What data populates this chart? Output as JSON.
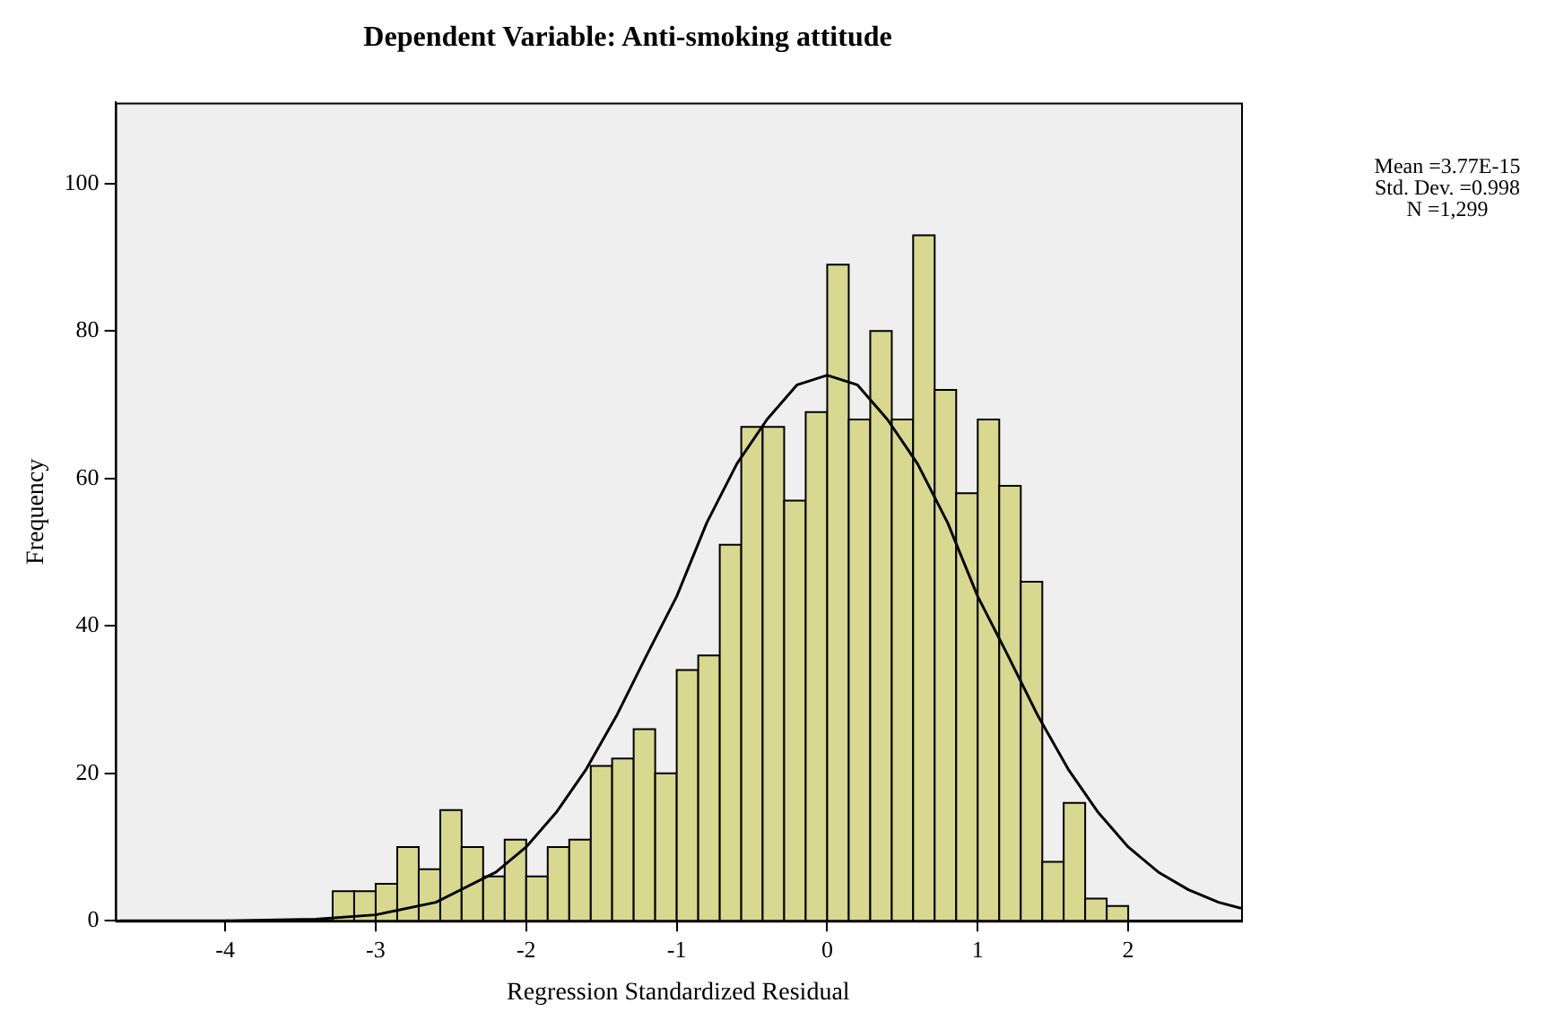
{
  "chart_data": {
    "type": "histogram",
    "title": "Dependent Variable: Anti-smoking attitude",
    "xlabel": "Regression Standardized Residual",
    "ylabel": "Frequency",
    "bins": [
      -3.286,
      -3.143,
      -3,
      -2.857,
      -2.714,
      -2.571,
      -2.429,
      -2.286,
      -2.143,
      -2,
      -1.857,
      -1.714,
      -1.571,
      -1.429,
      -1.286,
      -1.143,
      -1,
      -0.857,
      -0.714,
      -0.571,
      -0.429,
      -0.286,
      -0.143,
      0,
      0.143,
      0.286,
      0.429,
      0.571,
      0.714,
      0.857,
      1,
      1.143,
      1.286,
      1.429,
      1.571,
      1.714,
      1.857,
      2
    ],
    "values": [
      4,
      4,
      5,
      10,
      7,
      15,
      10,
      6,
      11,
      6,
      10,
      11,
      21,
      22,
      26,
      20,
      34,
      36,
      51,
      67,
      67,
      57,
      69,
      89,
      68,
      80,
      68,
      93,
      72,
      58,
      68,
      59,
      46,
      8,
      16,
      3,
      2
    ],
    "color": "#d8d890",
    "series": [
      {
        "type": "line",
        "color": "#000000",
        "x": [
          -4.7,
          -4,
          -3.4,
          -3,
          -2.6,
          -2.2,
          -2,
          -1.8,
          -1.6,
          -1.4,
          -1.2,
          -1,
          -0.8,
          -0.6,
          -0.4,
          -0.2,
          0,
          0.2,
          0.4,
          0.6,
          0.8,
          1,
          1.2,
          1.4,
          1.6,
          1.8,
          2,
          2.2,
          2.4,
          2.6,
          2.75
        ],
        "values": [
          0,
          0,
          0.2,
          0.8,
          2.5,
          6.6,
          10,
          14.7,
          20.6,
          27.8,
          36,
          44,
          54,
          62,
          68,
          72.7,
          74,
          72.7,
          68,
          62,
          54,
          44,
          36,
          27.8,
          20.6,
          14.7,
          10,
          6.6,
          4.2,
          2.5,
          1.7
        ]
      }
    ],
    "xlim": [
      -4.73,
      2.75
    ],
    "xticks": [
      -4,
      -3,
      -2,
      -1,
      0,
      1,
      2
    ],
    "ylim": [
      0,
      111
    ],
    "yticks": [
      0,
      20,
      40,
      60,
      80,
      100
    ],
    "grid": false,
    "legend": false,
    "marker": "none",
    "line_style": "solid",
    "annotations": [
      "Mean =3.77E-15",
      "Std. Dev. =0.998",
      "N =1,299"
    ]
  }
}
